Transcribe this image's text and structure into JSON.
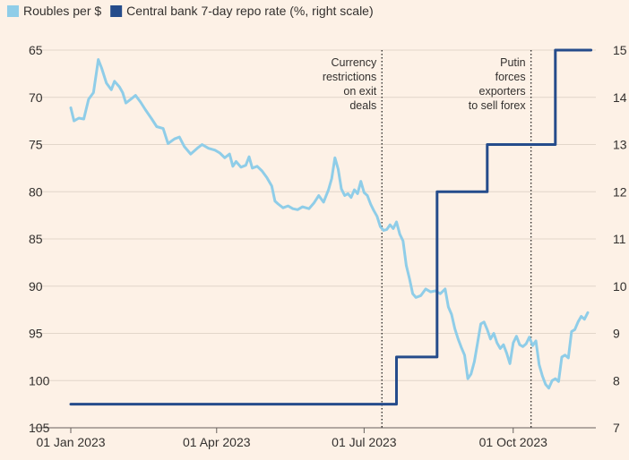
{
  "chart_data": {
    "type": "line",
    "title": "",
    "legend": {
      "placement": "top-left"
    },
    "series": [
      {
        "name": "Roubles per $",
        "axis": "left",
        "color": "#8fcde8",
        "points": [
          [
            "2023-01-01",
            71.1
          ],
          [
            "2023-01-03",
            72.5
          ],
          [
            "2023-01-06",
            72.2
          ],
          [
            "2023-01-09",
            72.3
          ],
          [
            "2023-01-12",
            70.2
          ],
          [
            "2023-01-15",
            69.5
          ],
          [
            "2023-01-17",
            67.2
          ],
          [
            "2023-01-18",
            66.0
          ],
          [
            "2023-01-20",
            66.9
          ],
          [
            "2023-01-23",
            68.5
          ],
          [
            "2023-01-26",
            69.2
          ],
          [
            "2023-01-28",
            68.3
          ],
          [
            "2023-01-31",
            68.9
          ],
          [
            "2023-02-02",
            69.5
          ],
          [
            "2023-02-04",
            70.6
          ],
          [
            "2023-02-07",
            70.2
          ],
          [
            "2023-02-10",
            69.8
          ],
          [
            "2023-02-13",
            70.5
          ],
          [
            "2023-02-16",
            71.3
          ],
          [
            "2023-02-20",
            72.3
          ],
          [
            "2023-02-23",
            73.1
          ],
          [
            "2023-02-27",
            73.3
          ],
          [
            "2023-03-02",
            74.9
          ],
          [
            "2023-03-06",
            74.4
          ],
          [
            "2023-03-09",
            74.2
          ],
          [
            "2023-03-12",
            75.2
          ],
          [
            "2023-03-16",
            76.0
          ],
          [
            "2023-03-20",
            75.4
          ],
          [
            "2023-03-23",
            75.0
          ],
          [
            "2023-03-27",
            75.4
          ],
          [
            "2023-03-31",
            75.6
          ],
          [
            "2023-04-03",
            75.9
          ],
          [
            "2023-04-06",
            76.4
          ],
          [
            "2023-04-09",
            76.0
          ],
          [
            "2023-04-11",
            77.3
          ],
          [
            "2023-04-13",
            76.8
          ],
          [
            "2023-04-16",
            77.4
          ],
          [
            "2023-04-19",
            77.2
          ],
          [
            "2023-04-21",
            76.3
          ],
          [
            "2023-04-23",
            77.5
          ],
          [
            "2023-04-26",
            77.3
          ],
          [
            "2023-04-29",
            77.8
          ],
          [
            "2023-05-02",
            78.5
          ],
          [
            "2023-05-05",
            79.4
          ],
          [
            "2023-05-07",
            81.0
          ],
          [
            "2023-05-09",
            81.3
          ],
          [
            "2023-05-12",
            81.7
          ],
          [
            "2023-05-15",
            81.5
          ],
          [
            "2023-05-18",
            81.8
          ],
          [
            "2023-05-21",
            81.9
          ],
          [
            "2023-05-24",
            81.6
          ],
          [
            "2023-05-28",
            81.8
          ],
          [
            "2023-05-31",
            81.2
          ],
          [
            "2023-06-03",
            80.4
          ],
          [
            "2023-06-06",
            81.1
          ],
          [
            "2023-06-09",
            79.8
          ],
          [
            "2023-06-11",
            78.6
          ],
          [
            "2023-06-13",
            76.4
          ],
          [
            "2023-06-15",
            77.6
          ],
          [
            "2023-06-17",
            79.7
          ],
          [
            "2023-06-19",
            80.4
          ],
          [
            "2023-06-21",
            80.2
          ],
          [
            "2023-06-23",
            80.6
          ],
          [
            "2023-06-25",
            79.8
          ],
          [
            "2023-06-27",
            80.2
          ],
          [
            "2023-06-29",
            78.9
          ],
          [
            "2023-07-01",
            80.1
          ],
          [
            "2023-07-03",
            80.4
          ],
          [
            "2023-07-05",
            81.3
          ],
          [
            "2023-07-07",
            82.0
          ],
          [
            "2023-07-09",
            82.6
          ],
          [
            "2023-07-11",
            83.7
          ],
          [
            "2023-07-13",
            84.1
          ],
          [
            "2023-07-15",
            84.0
          ],
          [
            "2023-07-17",
            83.5
          ],
          [
            "2023-07-19",
            83.9
          ],
          [
            "2023-07-21",
            83.2
          ],
          [
            "2023-07-23",
            84.5
          ],
          [
            "2023-07-25",
            85.2
          ],
          [
            "2023-07-27",
            87.8
          ],
          [
            "2023-07-29",
            89.2
          ],
          [
            "2023-07-31",
            90.8
          ],
          [
            "2023-08-02",
            91.2
          ],
          [
            "2023-08-05",
            91.0
          ],
          [
            "2023-08-08",
            90.3
          ],
          [
            "2023-08-11",
            90.6
          ],
          [
            "2023-08-14",
            90.5
          ],
          [
            "2023-08-17",
            90.8
          ],
          [
            "2023-08-20",
            90.3
          ],
          [
            "2023-08-22",
            92.2
          ],
          [
            "2023-08-24",
            93.0
          ],
          [
            "2023-08-26",
            94.5
          ],
          [
            "2023-08-28",
            95.6
          ],
          [
            "2023-08-30",
            96.5
          ],
          [
            "2023-09-01",
            97.3
          ],
          [
            "2023-09-03",
            99.8
          ],
          [
            "2023-09-05",
            99.3
          ],
          [
            "2023-09-07",
            98.0
          ],
          [
            "2023-09-09",
            96.0
          ],
          [
            "2023-09-11",
            94.0
          ],
          [
            "2023-09-13",
            93.8
          ],
          [
            "2023-09-15",
            94.6
          ],
          [
            "2023-09-17",
            95.6
          ],
          [
            "2023-09-19",
            95.0
          ],
          [
            "2023-09-21",
            96.0
          ],
          [
            "2023-09-23",
            96.6
          ],
          [
            "2023-09-25",
            96.2
          ],
          [
            "2023-09-27",
            97.1
          ],
          [
            "2023-09-29",
            98.2
          ],
          [
            "2023-10-01",
            96.0
          ],
          [
            "2023-10-03",
            95.3
          ],
          [
            "2023-10-05",
            96.2
          ],
          [
            "2023-10-07",
            96.4
          ],
          [
            "2023-10-09",
            96.1
          ],
          [
            "2023-10-11",
            95.4
          ],
          [
            "2023-10-13",
            96.3
          ],
          [
            "2023-10-15",
            95.8
          ],
          [
            "2023-10-17",
            98.3
          ],
          [
            "2023-10-19",
            99.5
          ],
          [
            "2023-10-21",
            100.4
          ],
          [
            "2023-10-23",
            100.8
          ],
          [
            "2023-10-25",
            100.0
          ],
          [
            "2023-10-27",
            99.8
          ],
          [
            "2023-10-29",
            100.1
          ],
          [
            "2023-10-31",
            97.5
          ],
          [
            "2023-11-02",
            97.3
          ],
          [
            "2023-11-04",
            97.6
          ],
          [
            "2023-11-06",
            94.8
          ],
          [
            "2023-11-08",
            94.6
          ],
          [
            "2023-11-10",
            93.8
          ],
          [
            "2023-11-12",
            93.2
          ],
          [
            "2023-11-14",
            93.5
          ],
          [
            "2023-11-16",
            92.8
          ]
        ]
      },
      {
        "name": "Central bank 7-day repo rate (%, right scale)",
        "axis": "right",
        "color": "#254c8b",
        "step": true,
        "points": [
          [
            "2023-01-01",
            7.5
          ],
          [
            "2023-07-21",
            8.5
          ],
          [
            "2023-08-15",
            12.0
          ],
          [
            "2023-09-15",
            13.0
          ],
          [
            "2023-10-27",
            15.0
          ],
          [
            "2023-11-18",
            15.0
          ]
        ]
      }
    ],
    "x_axis": {
      "range": [
        "2023-01-01",
        "2023-11-21"
      ],
      "ticks": [
        {
          "date": "2023-01-01",
          "label": "01 Jan 2023"
        },
        {
          "date": "2023-04-01",
          "label": "01 Apr 2023"
        },
        {
          "date": "2023-07-01",
          "label": "01 Jul 2023"
        },
        {
          "date": "2023-10-01",
          "label": "01 Oct 2023"
        }
      ]
    },
    "y_axis_left": {
      "label": "",
      "inverted": true,
      "range": [
        65,
        105
      ],
      "ticks": [
        "65",
        "70",
        "75",
        "80",
        "85",
        "90",
        "95",
        "100",
        "105"
      ]
    },
    "y_axis_right": {
      "label": "",
      "range": [
        7,
        15
      ],
      "ticks": [
        "7",
        "8",
        "9",
        "10",
        "11",
        "12",
        "13",
        "14",
        "15"
      ]
    },
    "grid": true,
    "annotations": [
      {
        "date": "2023-07-12",
        "lines": [
          "Currency",
          "restrictions",
          "on exit",
          "deals"
        ]
      },
      {
        "date": "2023-10-12",
        "lines": [
          "Putin",
          "forces",
          "exporters",
          "to sell forex"
        ]
      }
    ]
  }
}
